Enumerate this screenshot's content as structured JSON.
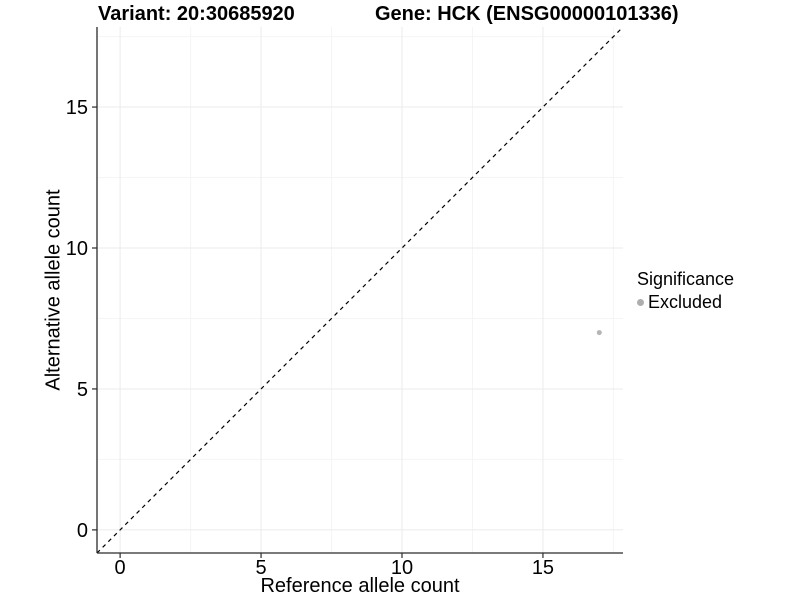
{
  "chart_data": {
    "type": "scatter",
    "title_left": "Variant: 20:30685920",
    "title_right": "Gene: HCK (ENSG00000101336)",
    "xlabel": "Reference allele count",
    "ylabel": "Alternative allele count",
    "xlim": [
      -0.82,
      17.84
    ],
    "ylim": [
      -0.82,
      17.84
    ],
    "xticks": [
      0,
      5,
      10,
      15
    ],
    "yticks": [
      0,
      5,
      10,
      15
    ],
    "x_minor_ticks": [
      2.5,
      7.5,
      12.5,
      17.5
    ],
    "y_minor_ticks": [
      2.5,
      7.5,
      12.5,
      17.5
    ],
    "grid": true,
    "reference_line": {
      "type": "identity",
      "slope": 1,
      "intercept": 0,
      "style": "dashed",
      "color": "#000000"
    },
    "points": [
      {
        "x": 17,
        "y": 7,
        "series": "Excluded",
        "color": "#b5b5b5",
        "radius": 2.5
      }
    ],
    "legend": {
      "position": "right",
      "title": "Significance",
      "entries": [
        {
          "label": "Excluded",
          "color": "#aeaeae"
        }
      ]
    },
    "colors": {
      "background": "#ffffff",
      "grid_major": "#ebebeb",
      "grid_minor": "#f5f5f5",
      "axis_line": "#2b2b2b",
      "tick_text": "#000000"
    }
  }
}
